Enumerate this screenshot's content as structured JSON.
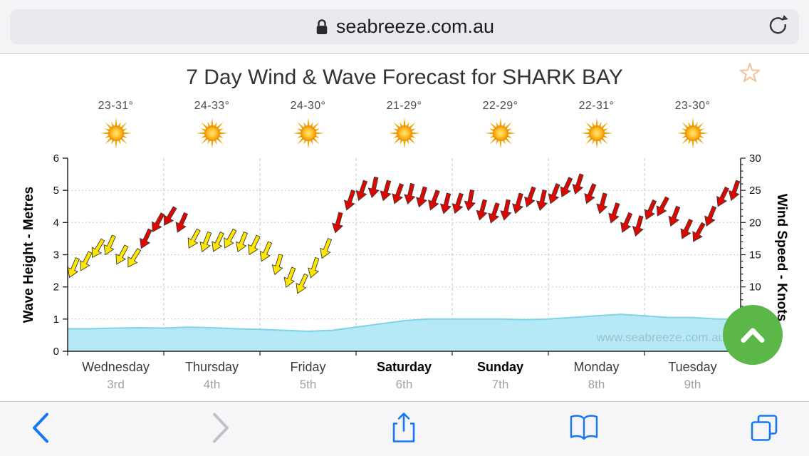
{
  "browser": {
    "url_bar": {
      "url": "seabreeze.com.au"
    }
  },
  "page": {
    "title": "7 Day Wind & Wave Forecast for SHARK BAY",
    "watermark": "www.seabreeze.com.au",
    "accent_green": "#5ab748",
    "ios_blue": "#1578f2"
  },
  "chart_data": {
    "type": "line",
    "title": "7 Day Wind & Wave Forecast for SHARK BAY",
    "left_axis": {
      "label": "Wave Height - Metres",
      "ticks": [
        0,
        1,
        2,
        3,
        4,
        5,
        6
      ],
      "range": [
        0,
        6
      ]
    },
    "right_axis": {
      "label": "Wind Speed - Knots",
      "ticks": [
        10,
        15,
        20,
        25,
        30
      ],
      "minor_tick_step": 1,
      "range": [
        0,
        30
      ]
    },
    "days": [
      {
        "name": "Wednesday",
        "date": "3rd",
        "temp": "23-31°",
        "bold": false
      },
      {
        "name": "Thursday",
        "date": "4th",
        "temp": "24-33°",
        "bold": false
      },
      {
        "name": "Friday",
        "date": "5th",
        "temp": "24-30°",
        "bold": false
      },
      {
        "name": "Saturday",
        "date": "6th",
        "temp": "21-29°",
        "bold": true
      },
      {
        "name": "Sunday",
        "date": "7th",
        "temp": "22-29°",
        "bold": true
      },
      {
        "name": "Monday",
        "date": "8th",
        "temp": "22-31°",
        "bold": false
      },
      {
        "name": "Tuesday",
        "date": "9th",
        "temp": "23-30°",
        "bold": false
      }
    ],
    "weather_icons": [
      "sun",
      "sun",
      "sun",
      "sun",
      "sun",
      "sun",
      "sun"
    ],
    "series": [
      {
        "name": "Wind Speed",
        "style": "wind-arrows",
        "axis": "right",
        "units": "knots",
        "points_per_day": 8,
        "palette": {
          "yellow": "#ffe600",
          "red": "#e00600"
        },
        "knots": [
          13,
          14,
          16,
          16.5,
          15,
          14.5,
          17.5,
          20,
          21,
          20,
          17.5,
          17,
          17,
          17.5,
          17,
          16.5,
          15.5,
          13.5,
          11.5,
          10.5,
          13,
          16,
          20,
          23.5,
          25,
          25.5,
          25,
          24.5,
          24.5,
          24,
          23.5,
          23,
          23,
          23.5,
          22,
          21.5,
          22,
          23,
          24,
          23.5,
          24.5,
          25.5,
          26,
          24.5,
          23,
          21.5,
          20,
          19.5,
          22,
          22.5,
          21,
          19,
          18.5,
          21,
          24,
          25
        ],
        "colors": [
          "y",
          "y",
          "y",
          "y",
          "y",
          "y",
          "r",
          "r",
          "r",
          "r",
          "y",
          "y",
          "y",
          "y",
          "y",
          "y",
          "y",
          "y",
          "y",
          "y",
          "y",
          "y",
          "r",
          "r",
          "r",
          "r",
          "r",
          "r",
          "r",
          "r",
          "r",
          "r",
          "r",
          "r",
          "r",
          "r",
          "r",
          "r",
          "r",
          "r",
          "r",
          "r",
          "r",
          "r",
          "r",
          "r",
          "r",
          "r",
          "r",
          "r",
          "r",
          "r",
          "r",
          "r",
          "r",
          "r"
        ],
        "arrow_dir_deg_per_day": [
          208,
          206,
          200,
          196,
          196,
          200,
          204
        ]
      },
      {
        "name": "Wave Height",
        "style": "area",
        "axis": "left",
        "units": "metres",
        "color": "#b5e9f6",
        "edge_color": "#7fd3e8",
        "values": [
          0.7,
          0.7,
          0.72,
          0.73,
          0.72,
          0.75,
          0.73,
          0.7,
          0.68,
          0.65,
          0.62,
          0.65,
          0.75,
          0.85,
          0.95,
          1.0,
          1.0,
          1.0,
          1.0,
          0.98,
          1.0,
          1.05,
          1.1,
          1.15,
          1.1,
          1.05,
          1.05,
          1.0,
          1.0
        ]
      }
    ]
  }
}
